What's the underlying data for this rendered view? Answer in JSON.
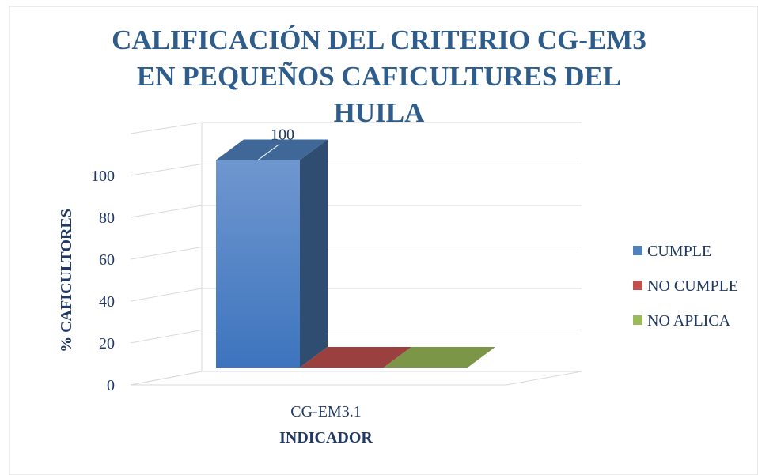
{
  "chart_data": {
    "type": "bar3d",
    "title": "CALIFICACIÓN DEL CRITERIO CG-EM3 EN PEQUEÑOS CAFICULTURES DEL HUILA",
    "y_label": "% CAFICULTORES",
    "x_label": "INDICADOR",
    "categories": [
      "CG-EM3.1"
    ],
    "series": [
      {
        "name": "CUMPLE",
        "color": "#4f81bd",
        "values": [
          100
        ]
      },
      {
        "name": "NO CUMPLE",
        "color": "#c0504d",
        "values": [
          0
        ]
      },
      {
        "name": "NO APLICA",
        "color": "#9bbb59",
        "values": [
          0
        ]
      }
    ],
    "ylim": [
      0,
      120
    ],
    "yticks": [
      0,
      20,
      40,
      60,
      80,
      100
    ],
    "grid": true,
    "legend": "right"
  }
}
